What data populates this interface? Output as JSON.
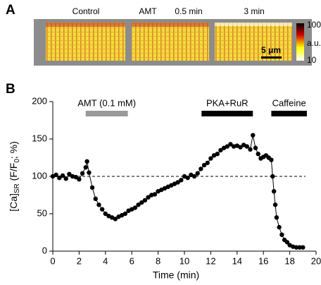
{
  "panel_a": {
    "label": "A",
    "image_labels": [
      "Control",
      "AMT",
      "0.5 min",
      "3 min"
    ],
    "colorbar_labels": [
      "100",
      "a.u.",
      "10"
    ],
    "scale_bar": "5 μm"
  },
  "chart_data": {
    "type": "line",
    "panel_label": "B",
    "xlabel": "Time (min)",
    "ylabel_parts": [
      "[Ca]",
      "SR",
      " (F/F",
      "0",
      "; %)"
    ],
    "x": [
      0,
      0.25,
      0.5,
      0.75,
      1,
      1.25,
      1.5,
      1.75,
      2,
      2.25,
      2.5,
      2.6,
      2.75,
      3,
      3.25,
      3.5,
      3.75,
      4,
      4.25,
      4.5,
      4.75,
      5,
      5.25,
      5.5,
      5.75,
      6,
      6.25,
      6.5,
      6.75,
      7,
      7.25,
      7.5,
      7.75,
      8,
      8.25,
      8.5,
      8.75,
      9,
      9.25,
      9.5,
      9.75,
      10,
      10.25,
      10.5,
      10.75,
      11,
      11.25,
      11.5,
      11.75,
      12,
      12.25,
      12.5,
      12.75,
      13,
      13.25,
      13.5,
      13.75,
      14,
      14.25,
      14.5,
      14.75,
      15,
      15.2,
      15.4,
      15.6,
      15.8,
      16,
      16.2,
      16.4,
      16.6,
      16.7,
      16.8,
      16.9,
      17,
      17.2,
      17.4,
      17.6,
      17.8,
      18,
      18.25,
      18.5,
      18.75,
      19
    ],
    "series": [
      {
        "color": "#000000",
        "values": [
          100,
          102,
          98,
          101,
          97,
          103,
          100,
          99,
          96,
          104,
          112,
          120,
          105,
          85,
          70,
          62,
          56,
          50,
          47,
          45,
          43,
          46,
          48,
          50,
          54,
          56,
          58,
          62,
          65,
          68,
          72,
          75,
          76,
          80,
          82,
          84,
          86,
          88,
          90,
          92,
          95,
          100,
          98,
          102,
          100,
          104,
          110,
          115,
          118,
          124,
          128,
          130,
          135,
          138,
          140,
          143,
          140,
          141,
          139,
          142,
          140,
          136,
          155,
          138,
          130,
          124,
          126,
          128,
          125,
          122,
          100,
          80,
          62,
          45,
          32,
          22,
          15,
          12,
          8,
          6,
          5,
          5,
          5
        ]
      }
    ],
    "xlim": [
      0,
      20
    ],
    "xticks": [
      0,
      2,
      4,
      6,
      8,
      10,
      12,
      14,
      16,
      18,
      20
    ],
    "ylim": [
      0,
      200
    ],
    "yticks": [
      0,
      50,
      100,
      150,
      200
    ],
    "reference_line": 100,
    "annotations": [
      {
        "label": "AMT (0.1 mM)",
        "x": [
          2.5,
          5.7
        ],
        "color": "#999999"
      },
      {
        "label": "PKA+RuR",
        "x": [
          11.3,
          15.2
        ],
        "color": "#000000"
      },
      {
        "label": "Caffeine",
        "x": [
          16.6,
          19.3
        ],
        "color": "#000000"
      }
    ]
  }
}
